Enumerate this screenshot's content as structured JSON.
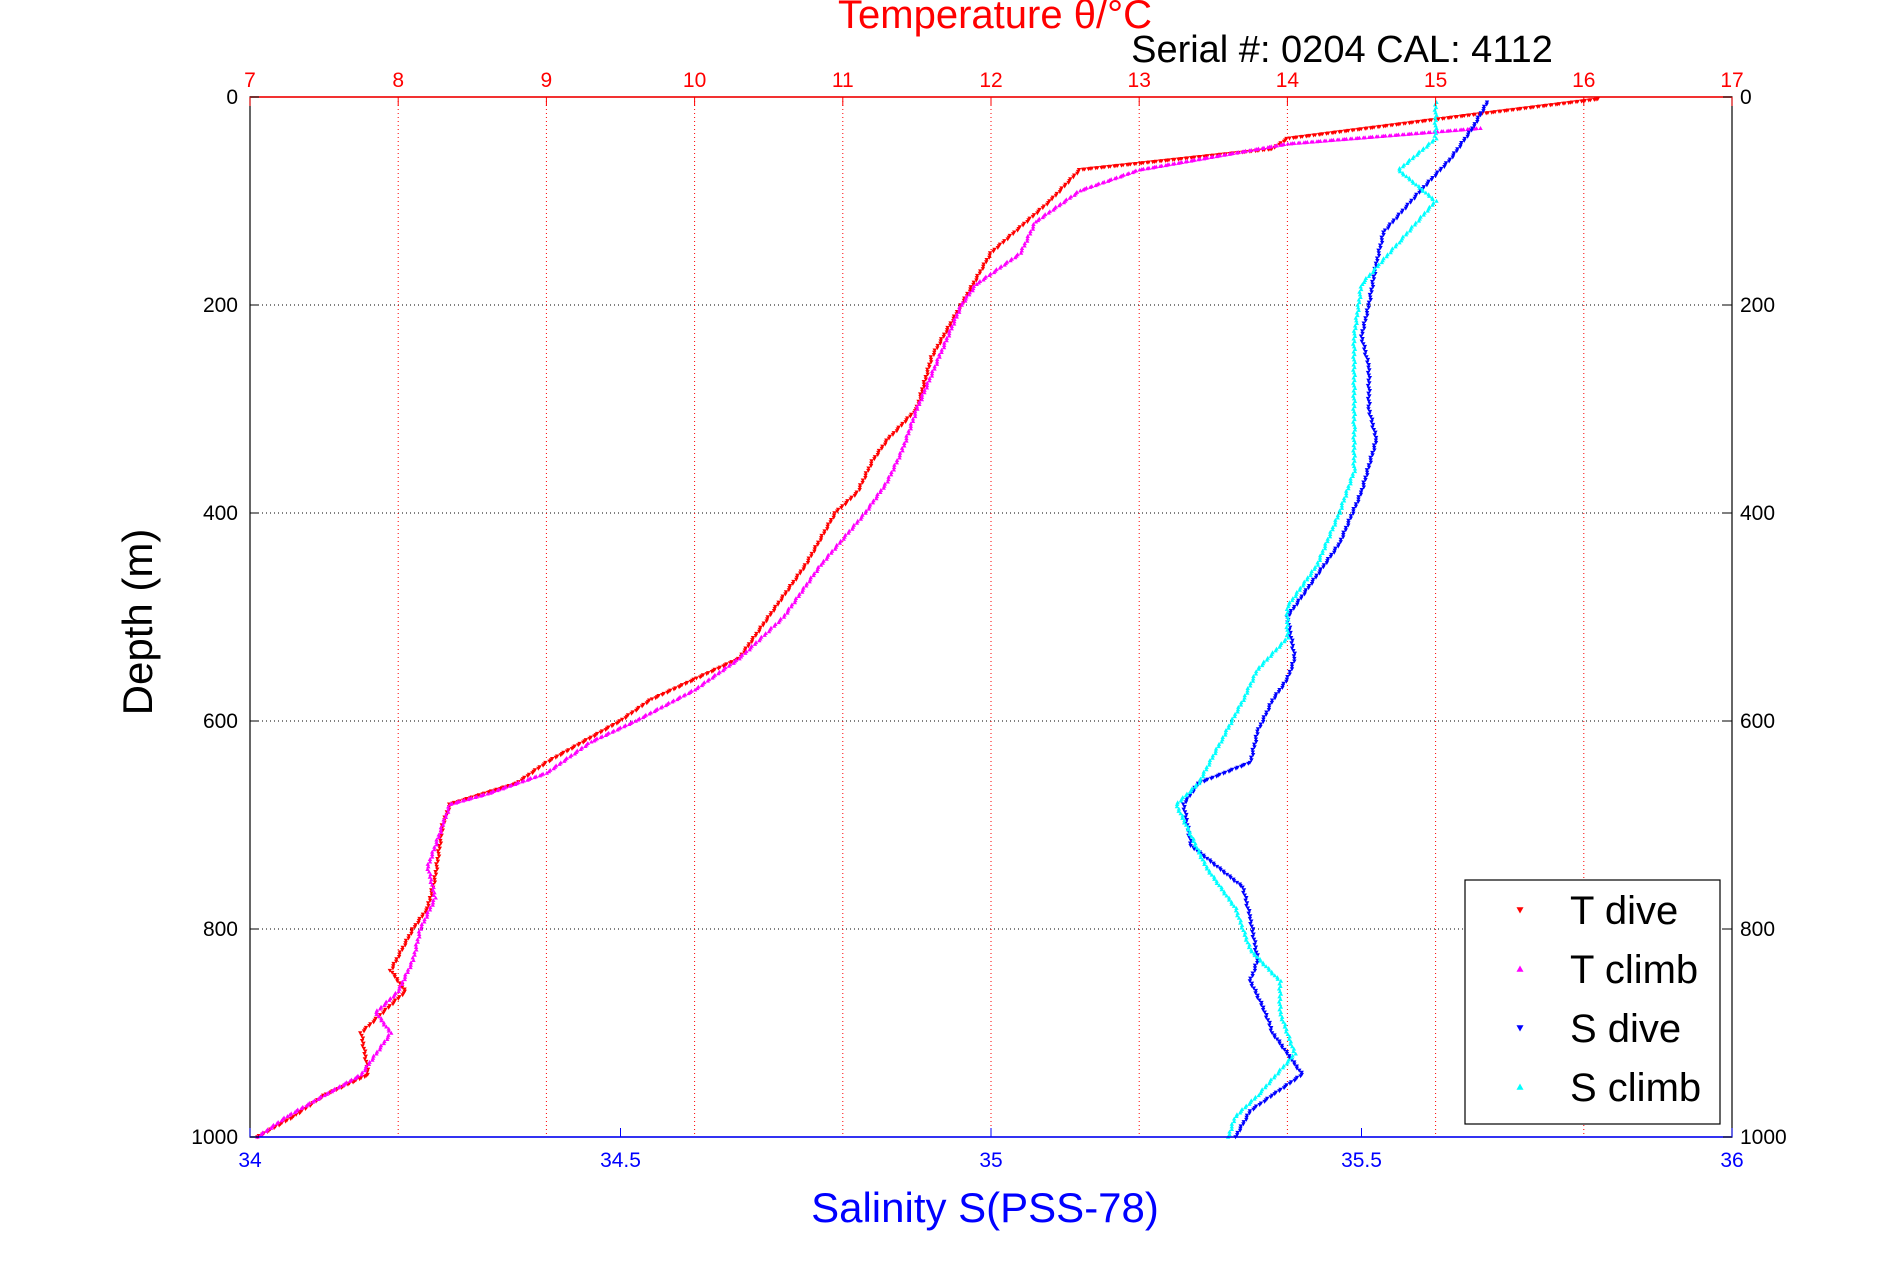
{
  "chart_data": {
    "type": "scatter",
    "title": "Temperature θ/°C",
    "subtitle": "Serial #: 0204  CAL: 4112",
    "ylabel": "Depth (m)",
    "xlabel": "Salinity S(PSS-78)",
    "ylim": [
      0,
      1000
    ],
    "y_reversed": true,
    "y_ticks": [
      "0",
      "200",
      "400",
      "600",
      "800",
      "1000"
    ],
    "x_bottom": {
      "range": [
        34,
        36
      ],
      "ticks": [
        "34",
        "34.5",
        "35",
        "35.5",
        "36"
      ],
      "color": "#0000ff",
      "grid": false
    },
    "x_top": {
      "range": [
        7,
        17
      ],
      "ticks": [
        "7",
        "8",
        "9",
        "10",
        "11",
        "12",
        "13",
        "14",
        "15",
        "16",
        "17"
      ],
      "color": "#ff0000",
      "grid": true
    },
    "grid_y": true,
    "legend_position": "bottom-right",
    "series": [
      {
        "name": "T dive",
        "axis": "top",
        "color": "#ff0000",
        "marker": "triangle-down",
        "points": [
          [
            16.1,
            2
          ],
          [
            15.2,
            18
          ],
          [
            14.0,
            40
          ],
          [
            13.9,
            50
          ],
          [
            12.6,
            70
          ],
          [
            12.4,
            100
          ],
          [
            12.0,
            150
          ],
          [
            11.8,
            200
          ],
          [
            11.6,
            250
          ],
          [
            11.5,
            300
          ],
          [
            11.3,
            330
          ],
          [
            11.2,
            350
          ],
          [
            11.1,
            380
          ],
          [
            10.95,
            400
          ],
          [
            10.75,
            450
          ],
          [
            10.5,
            500
          ],
          [
            10.3,
            540
          ],
          [
            10.0,
            560
          ],
          [
            9.7,
            580
          ],
          [
            9.5,
            600
          ],
          [
            9.0,
            640
          ],
          [
            8.8,
            660
          ],
          [
            8.35,
            680
          ],
          [
            8.3,
            700
          ],
          [
            8.25,
            750
          ],
          [
            8.2,
            780
          ],
          [
            8.1,
            800
          ],
          [
            7.95,
            840
          ],
          [
            8.05,
            860
          ],
          [
            7.75,
            900
          ],
          [
            7.8,
            940
          ],
          [
            7.5,
            960
          ],
          [
            7.3,
            980
          ],
          [
            7.05,
            1000
          ]
        ]
      },
      {
        "name": "T climb",
        "axis": "top",
        "color": "#ff00ff",
        "marker": "triangle-up",
        "points": [
          [
            15.3,
            30
          ],
          [
            14.0,
            45
          ],
          [
            13.0,
            70
          ],
          [
            12.6,
            90
          ],
          [
            12.3,
            120
          ],
          [
            12.2,
            150
          ],
          [
            11.9,
            180
          ],
          [
            11.8,
            200
          ],
          [
            11.65,
            250
          ],
          [
            11.5,
            300
          ],
          [
            11.4,
            340
          ],
          [
            11.3,
            370
          ],
          [
            11.15,
            400
          ],
          [
            10.85,
            450
          ],
          [
            10.6,
            500
          ],
          [
            10.3,
            540
          ],
          [
            10.0,
            570
          ],
          [
            9.6,
            600
          ],
          [
            9.3,
            620
          ],
          [
            9.0,
            650
          ],
          [
            8.6,
            670
          ],
          [
            8.35,
            680
          ],
          [
            8.3,
            700
          ],
          [
            8.2,
            740
          ],
          [
            8.25,
            770
          ],
          [
            8.15,
            800
          ],
          [
            8.1,
            830
          ],
          [
            8.0,
            860
          ],
          [
            7.85,
            880
          ],
          [
            7.95,
            900
          ],
          [
            7.85,
            920
          ],
          [
            7.75,
            940
          ],
          [
            7.5,
            960
          ],
          [
            7.25,
            980
          ],
          [
            7.05,
            1000
          ]
        ]
      },
      {
        "name": "S dive",
        "axis": "bottom",
        "color": "#0000ff",
        "marker": "triangle-down",
        "points": [
          [
            35.67,
            5
          ],
          [
            35.65,
            30
          ],
          [
            35.62,
            60
          ],
          [
            35.58,
            90
          ],
          [
            35.53,
            130
          ],
          [
            35.52,
            160
          ],
          [
            35.51,
            200
          ],
          [
            35.5,
            230
          ],
          [
            35.51,
            260
          ],
          [
            35.51,
            300
          ],
          [
            35.52,
            330
          ],
          [
            35.5,
            380
          ],
          [
            35.47,
            430
          ],
          [
            35.43,
            470
          ],
          [
            35.4,
            500
          ],
          [
            35.41,
            540
          ],
          [
            35.4,
            560
          ],
          [
            35.38,
            580
          ],
          [
            35.36,
            610
          ],
          [
            35.35,
            640
          ],
          [
            35.28,
            660
          ],
          [
            35.26,
            680
          ],
          [
            35.27,
            720
          ],
          [
            35.34,
            760
          ],
          [
            35.35,
            790
          ],
          [
            35.36,
            830
          ],
          [
            35.35,
            850
          ],
          [
            35.37,
            880
          ],
          [
            35.38,
            900
          ],
          [
            35.42,
            940
          ],
          [
            35.38,
            960
          ],
          [
            35.35,
            975
          ],
          [
            35.33,
            1000
          ]
        ]
      },
      {
        "name": "S climb",
        "axis": "bottom",
        "color": "#00ffff",
        "marker": "triangle-up",
        "points": [
          [
            35.6,
            5
          ],
          [
            35.6,
            40
          ],
          [
            35.55,
            70
          ],
          [
            35.6,
            100
          ],
          [
            35.55,
            140
          ],
          [
            35.5,
            180
          ],
          [
            35.49,
            230
          ],
          [
            35.49,
            280
          ],
          [
            35.49,
            320
          ],
          [
            35.49,
            360
          ],
          [
            35.47,
            400
          ],
          [
            35.44,
            450
          ],
          [
            35.4,
            490
          ],
          [
            35.4,
            520
          ],
          [
            35.36,
            550
          ],
          [
            35.34,
            580
          ],
          [
            35.31,
            620
          ],
          [
            35.28,
            660
          ],
          [
            35.25,
            680
          ],
          [
            35.29,
            740
          ],
          [
            35.33,
            780
          ],
          [
            35.35,
            820
          ],
          [
            35.39,
            850
          ],
          [
            35.39,
            880
          ],
          [
            35.41,
            920
          ],
          [
            35.36,
            960
          ],
          [
            35.33,
            980
          ],
          [
            35.32,
            1000
          ]
        ]
      }
    ]
  }
}
